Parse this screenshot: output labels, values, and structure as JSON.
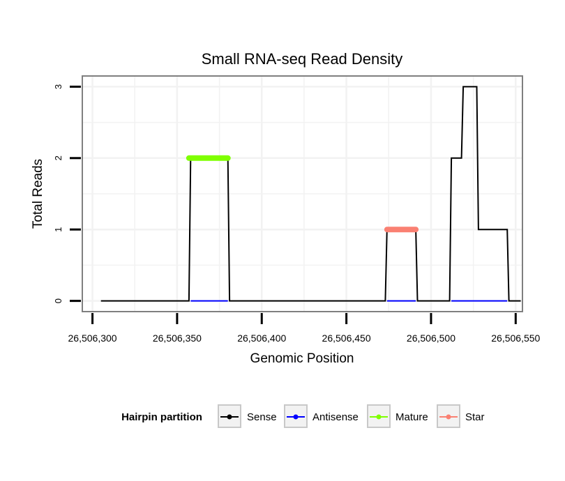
{
  "chart_data": {
    "type": "line",
    "title": "Small RNA-seq Read Density",
    "xlabel": "Genomic Position",
    "ylabel": "Total Reads",
    "xlim": [
      26506294,
      26506554
    ],
    "ylim": [
      -0.15,
      3.15
    ],
    "x_ticks": [
      26506300,
      26506350,
      26506400,
      26506450,
      26506500,
      26506550
    ],
    "x_tick_labels": [
      "26,506,300",
      "26,506,350",
      "26,506,400",
      "26,506,450",
      "26,506,500",
      "26,506,550"
    ],
    "y_ticks": [
      0,
      1,
      2,
      3
    ],
    "y_tick_labels": [
      "0",
      "1",
      "2",
      "3"
    ],
    "legend": {
      "title": "Hairpin partition",
      "position": "bottom",
      "entries": [
        {
          "name": "Sense",
          "color": "#000000"
        },
        {
          "name": "Antisense",
          "color": "#0000ff"
        },
        {
          "name": "Mature",
          "color": "#7fff00"
        },
        {
          "name": "Star",
          "color": "#fa8072"
        }
      ]
    },
    "series": [
      {
        "name": "Sense",
        "color": "#000000",
        "points": [
          [
            26506305,
            0
          ],
          [
            26506357,
            0
          ],
          [
            26506358,
            2
          ],
          [
            26506380,
            2
          ],
          [
            26506381,
            0
          ],
          [
            26506473,
            0
          ],
          [
            26506474,
            1
          ],
          [
            26506491,
            1
          ],
          [
            26506492,
            0
          ],
          [
            26506511,
            0
          ],
          [
            26506512,
            2
          ],
          [
            26506518,
            2
          ],
          [
            26506519,
            3
          ],
          [
            26506527,
            3
          ],
          [
            26506528,
            1
          ],
          [
            26506545,
            1
          ],
          [
            26506546,
            0
          ],
          [
            26506553,
            0
          ]
        ]
      },
      {
        "name": "Antisense",
        "color": "#0000ff",
        "points": [
          [
            26506358,
            0
          ],
          [
            26506380,
            0
          ],
          [
            26506474,
            0
          ],
          [
            26506491,
            0
          ],
          [
            26506512,
            0
          ],
          [
            26506545,
            0
          ]
        ],
        "segments": [
          [
            0,
            1
          ],
          [
            2,
            3
          ],
          [
            4,
            5
          ]
        ]
      },
      {
        "name": "Mature",
        "color": "#7fff00",
        "points": [
          [
            26506357,
            2
          ],
          [
            26506380,
            2
          ]
        ]
      },
      {
        "name": "Star",
        "color": "#fa8072",
        "points": [
          [
            26506474,
            1
          ],
          [
            26506491,
            1
          ]
        ]
      }
    ]
  }
}
